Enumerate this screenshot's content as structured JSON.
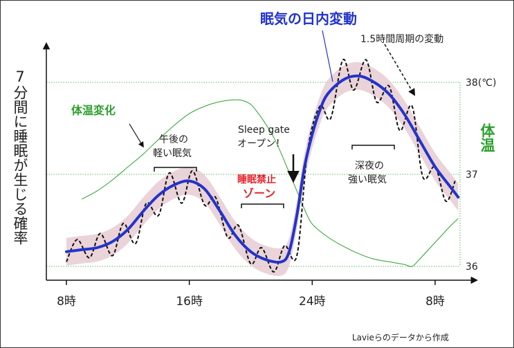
{
  "chart_data": {
    "type": "line",
    "title": "眠気の日内変動",
    "ylabel": "7分間に睡眠が生じる確率",
    "secondary_ylabel": "体温",
    "x_ticks": [
      {
        "hour": 8,
        "label": "8時"
      },
      {
        "hour": 16,
        "label": "16時"
      },
      {
        "hour": 24,
        "label": "24時"
      },
      {
        "hour": 32,
        "label": "8時"
      }
    ],
    "x_range": [
      7.9,
      33.8
    ],
    "temp_ticks": [
      {
        "value": 38,
        "label": "38(℃)"
      },
      {
        "value": 37,
        "label": "37"
      },
      {
        "value": 36,
        "label": "36"
      }
    ],
    "temp_range": [
      36,
      38
    ],
    "sleepiness_range": [
      0,
      1
    ],
    "series": [
      {
        "name": "体温変化",
        "color": "#2ca02c",
        "unit": "℃",
        "x": [
          9.0,
          10.0,
          11.0,
          12.0,
          13.0,
          14.0,
          15.0,
          16.0,
          17.0,
          18.0,
          19.0,
          19.5,
          20.0,
          20.5,
          21.0,
          21.5,
          22.0,
          22.5,
          23.0,
          23.5,
          24.0,
          25.0,
          26.0,
          27.0,
          28.0,
          29.0,
          30.0,
          30.5,
          31.0,
          32.0,
          33.0,
          33.5
        ],
        "y": [
          36.73,
          36.82,
          36.94,
          37.08,
          37.22,
          37.38,
          37.53,
          37.66,
          37.74,
          37.79,
          37.81,
          37.8,
          37.76,
          37.66,
          37.54,
          37.4,
          37.22,
          37.02,
          36.82,
          36.62,
          36.46,
          36.32,
          36.22,
          36.14,
          36.08,
          36.05,
          36.02,
          36.0,
          36.08,
          36.26,
          36.44,
          36.52
        ]
      },
      {
        "name": "眠気の日内変動",
        "color": "#2233cc",
        "x": [
          8.0,
          9.0,
          10.0,
          11.0,
          12.0,
          13.0,
          14.0,
          15.0,
          16.0,
          17.0,
          18.0,
          19.0,
          20.0,
          21.0,
          22.0,
          22.5,
          23.0,
          23.5,
          24.0,
          24.5,
          25.0,
          26.0,
          27.0,
          28.0,
          29.0,
          30.0,
          31.0,
          32.0,
          33.0,
          33.5
        ],
        "y": [
          0.1,
          0.11,
          0.12,
          0.15,
          0.21,
          0.3,
          0.38,
          0.43,
          0.45,
          0.41,
          0.3,
          0.18,
          0.1,
          0.06,
          0.05,
          0.1,
          0.28,
          0.52,
          0.68,
          0.8,
          0.88,
          0.95,
          0.97,
          0.94,
          0.88,
          0.78,
          0.65,
          0.52,
          0.42,
          0.37
        ]
      },
      {
        "name": "1.5時間周期の変動",
        "color": "#111111",
        "x": [
          8.0,
          8.7,
          9.5,
          10.2,
          11.0,
          11.7,
          12.5,
          13.2,
          14.0,
          14.7,
          15.5,
          16.2,
          17.0,
          17.7,
          18.5,
          19.2,
          20.0,
          20.7,
          21.5,
          22.2,
          23.0,
          23.7,
          24.5,
          25.2,
          26.0,
          26.7,
          27.5,
          28.2,
          29.0,
          29.7,
          30.5,
          31.2,
          32.0,
          32.7,
          33.3
        ],
        "y": [
          0.05,
          0.16,
          0.07,
          0.19,
          0.08,
          0.24,
          0.14,
          0.34,
          0.28,
          0.49,
          0.34,
          0.5,
          0.33,
          0.37,
          0.17,
          0.23,
          0.04,
          0.12,
          0.0,
          0.13,
          0.08,
          0.6,
          0.82,
          0.76,
          1.05,
          0.9,
          1.05,
          0.84,
          0.92,
          0.7,
          0.82,
          0.47,
          0.52,
          0.35,
          0.45
        ]
      }
    ],
    "annotations": {
      "title_main": "眠気の日内変動",
      "cycle": "1.5時間周期の変動",
      "temp_change": "体温変化",
      "afternoon_line1": "午後の",
      "afternoon_line2": "軽い眠気",
      "gate_line1": "Sleep gate",
      "gate_line2": "オープン！",
      "forbidden_line1": "睡眠禁止",
      "forbidden_line2": "ゾーン",
      "night_line1": "深夜の",
      "night_line2": "強い眠気"
    },
    "source": "Lavieらのデータから作成",
    "colors": {
      "band": "#e6ccd2",
      "blue": "#2233cc",
      "green": "#2ca02c",
      "red": "#e8202a",
      "guide": "#2ca02c"
    }
  }
}
